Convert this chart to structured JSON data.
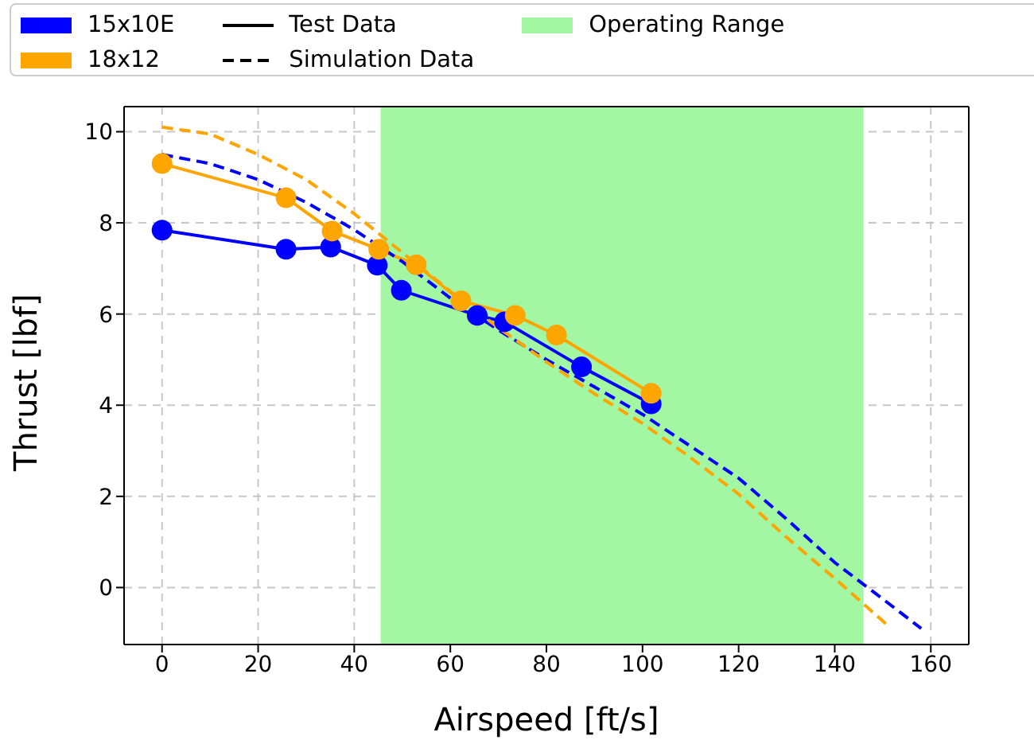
{
  "chart_data": {
    "type": "line",
    "xlabel": "Airspeed [ft/s]",
    "ylabel": "Thrust [lbf]",
    "xlim": [
      -7.9,
      167.9
    ],
    "ylim": [
      -1.25,
      10.55
    ],
    "xticks": [
      0,
      20,
      40,
      60,
      80,
      100,
      120,
      140,
      160
    ],
    "yticks": [
      0,
      2,
      4,
      6,
      8,
      10
    ],
    "grid": true,
    "legend": "top",
    "annotations": [
      "Test Data",
      "Simulation Data"
    ],
    "bands": [
      {
        "axis": "x",
        "from": 45.5,
        "to": 146,
        "label": "Operating Range",
        "color": "#a3f7a3"
      }
    ],
    "series": [
      {
        "name": "15x10E",
        "color": "#0000ff",
        "marker": "circle",
        "line_style": "solid",
        "x": [
          0,
          25.8,
          35.1,
          44.8,
          49.8,
          65.6,
          71.3,
          87.3,
          101.8
        ],
        "values": [
          7.84,
          7.42,
          7.47,
          7.07,
          6.52,
          5.97,
          5.83,
          4.84,
          4.03
        ]
      },
      {
        "name": "18x12",
        "color": "#ffa500",
        "marker": "circle",
        "line_style": "solid",
        "x": [
          0,
          25.8,
          35.4,
          45.1,
          52.9,
          62.2,
          73.5,
          82.1,
          101.8
        ],
        "values": [
          9.3,
          8.55,
          7.82,
          7.42,
          7.08,
          6.29,
          5.97,
          5.54,
          4.26
        ]
      },
      {
        "color": "#0000ff",
        "marker": "none",
        "line_style": "dashed",
        "x": [
          0,
          10,
          20,
          30,
          40,
          50,
          60,
          70,
          80,
          90,
          100,
          110,
          120,
          130,
          140,
          150,
          158
        ],
        "values": [
          9.5,
          9.3,
          8.95,
          8.45,
          7.85,
          7.15,
          6.35,
          5.65,
          5.0,
          4.4,
          3.8,
          3.1,
          2.4,
          1.5,
          0.55,
          -0.25,
          -0.9
        ]
      },
      {
        "color": "#ffa500",
        "marker": "none",
        "line_style": "dashed",
        "x": [
          0,
          10,
          20,
          30,
          40,
          50,
          60,
          70,
          80,
          90,
          100,
          110,
          120,
          130,
          140,
          150.7
        ],
        "values": [
          10.1,
          9.95,
          9.5,
          8.95,
          8.2,
          7.35,
          6.5,
          5.7,
          4.95,
          4.25,
          3.6,
          2.85,
          2.05,
          1.1,
          0.2,
          -0.8
        ]
      }
    ]
  }
}
